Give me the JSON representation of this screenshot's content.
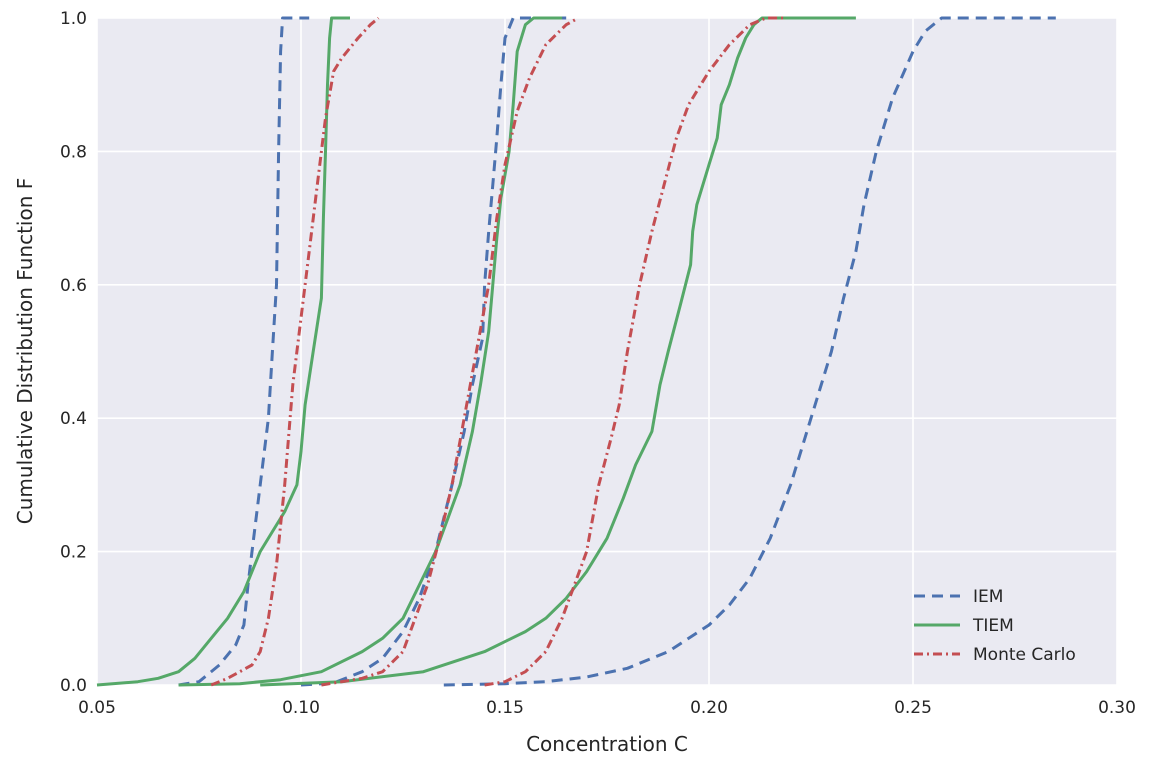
{
  "chart_data": {
    "type": "line",
    "xlabel": "Concentration C",
    "ylabel": "Cumulative Distribution Function F",
    "xlim": [
      0.05,
      0.3
    ],
    "ylim": [
      0.0,
      1.0
    ],
    "x_ticks": [
      "0.05",
      "0.10",
      "0.15",
      "0.20",
      "0.25",
      "0.30"
    ],
    "y_ticks": [
      "0.0",
      "0.2",
      "0.4",
      "0.6",
      "0.8",
      "1.0"
    ],
    "grid": true,
    "legend_position": "lower-right",
    "series": [
      {
        "name": "IEM",
        "style": "dashed",
        "color": "#4c72b0",
        "curves": [
          [
            [
              0.07,
              0.0
            ],
            [
              0.075,
              0.005
            ],
            [
              0.08,
              0.03
            ],
            [
              0.084,
              0.06
            ],
            [
              0.086,
              0.09
            ],
            [
              0.087,
              0.15
            ],
            [
              0.088,
              0.2
            ],
            [
              0.089,
              0.25
            ],
            [
              0.09,
              0.3
            ],
            [
              0.091,
              0.35
            ],
            [
              0.092,
              0.4
            ],
            [
              0.093,
              0.5
            ],
            [
              0.094,
              0.6
            ],
            [
              0.0945,
              0.8
            ],
            [
              0.095,
              0.95
            ],
            [
              0.0955,
              1.0
            ],
            [
              0.102,
              1.0
            ]
          ],
          [
            [
              0.1,
              0.0
            ],
            [
              0.108,
              0.003
            ],
            [
              0.115,
              0.02
            ],
            [
              0.12,
              0.04
            ],
            [
              0.125,
              0.08
            ],
            [
              0.129,
              0.13
            ],
            [
              0.133,
              0.2
            ],
            [
              0.137,
              0.3
            ],
            [
              0.14,
              0.38
            ],
            [
              0.142,
              0.45
            ],
            [
              0.1445,
              0.52
            ],
            [
              0.145,
              0.6
            ],
            [
              0.146,
              0.68
            ],
            [
              0.147,
              0.75
            ],
            [
              0.148,
              0.82
            ],
            [
              0.149,
              0.9
            ],
            [
              0.15,
              0.97
            ],
            [
              0.152,
              1.0
            ],
            [
              0.165,
              1.0
            ]
          ],
          [
            [
              0.135,
              0.0
            ],
            [
              0.15,
              0.002
            ],
            [
              0.16,
              0.005
            ],
            [
              0.17,
              0.012
            ],
            [
              0.18,
              0.025
            ],
            [
              0.19,
              0.05
            ],
            [
              0.2,
              0.09
            ],
            [
              0.205,
              0.12
            ],
            [
              0.21,
              0.16
            ],
            [
              0.215,
              0.22
            ],
            [
              0.22,
              0.3
            ],
            [
              0.225,
              0.4
            ],
            [
              0.23,
              0.5
            ],
            [
              0.233,
              0.58
            ],
            [
              0.236,
              0.65
            ],
            [
              0.238,
              0.72
            ],
            [
              0.241,
              0.8
            ],
            [
              0.245,
              0.88
            ],
            [
              0.25,
              0.95
            ],
            [
              0.253,
              0.98
            ],
            [
              0.257,
              1.0
            ],
            [
              0.285,
              1.0
            ]
          ]
        ]
      },
      {
        "name": "TIEM",
        "style": "solid",
        "color": "#55a868",
        "curves": [
          [
            [
              0.05,
              0.0
            ],
            [
              0.06,
              0.005
            ],
            [
              0.065,
              0.01
            ],
            [
              0.07,
              0.02
            ],
            [
              0.074,
              0.04
            ],
            [
              0.078,
              0.07
            ],
            [
              0.082,
              0.1
            ],
            [
              0.086,
              0.14
            ],
            [
              0.088,
              0.17
            ],
            [
              0.09,
              0.2
            ],
            [
              0.093,
              0.23
            ],
            [
              0.096,
              0.26
            ],
            [
              0.099,
              0.3
            ],
            [
              0.1,
              0.35
            ],
            [
              0.101,
              0.42
            ],
            [
              0.103,
              0.5
            ],
            [
              0.105,
              0.58
            ],
            [
              0.1055,
              0.7
            ],
            [
              0.106,
              0.8
            ],
            [
              0.1065,
              0.9
            ],
            [
              0.107,
              0.97
            ],
            [
              0.1075,
              1.0
            ],
            [
              0.112,
              1.0
            ]
          ],
          [
            [
              0.07,
              0.0
            ],
            [
              0.085,
              0.002
            ],
            [
              0.095,
              0.008
            ],
            [
              0.105,
              0.02
            ],
            [
              0.115,
              0.05
            ],
            [
              0.12,
              0.07
            ],
            [
              0.125,
              0.1
            ],
            [
              0.129,
              0.15
            ],
            [
              0.133,
              0.2
            ],
            [
              0.136,
              0.25
            ],
            [
              0.139,
              0.3
            ],
            [
              0.142,
              0.38
            ],
            [
              0.144,
              0.45
            ],
            [
              0.146,
              0.53
            ],
            [
              0.147,
              0.6
            ],
            [
              0.148,
              0.67
            ],
            [
              0.149,
              0.73
            ],
            [
              0.151,
              0.8
            ],
            [
              0.152,
              0.87
            ],
            [
              0.153,
              0.95
            ],
            [
              0.155,
              0.99
            ],
            [
              0.157,
              1.0
            ],
            [
              0.164,
              1.0
            ]
          ],
          [
            [
              0.09,
              0.0
            ],
            [
              0.11,
              0.005
            ],
            [
              0.13,
              0.02
            ],
            [
              0.145,
              0.05
            ],
            [
              0.155,
              0.08
            ],
            [
              0.16,
              0.1
            ],
            [
              0.165,
              0.13
            ],
            [
              0.17,
              0.17
            ],
            [
              0.175,
              0.22
            ],
            [
              0.179,
              0.28
            ],
            [
              0.182,
              0.33
            ],
            [
              0.186,
              0.38
            ],
            [
              0.188,
              0.45
            ],
            [
              0.19,
              0.5
            ],
            [
              0.193,
              0.57
            ],
            [
              0.1955,
              0.63
            ],
            [
              0.196,
              0.68
            ],
            [
              0.197,
              0.72
            ],
            [
              0.2,
              0.78
            ],
            [
              0.202,
              0.82
            ],
            [
              0.203,
              0.87
            ],
            [
              0.205,
              0.9
            ],
            [
              0.207,
              0.94
            ],
            [
              0.209,
              0.97
            ],
            [
              0.211,
              0.99
            ],
            [
              0.213,
              1.0
            ],
            [
              0.236,
              1.0
            ]
          ]
        ]
      },
      {
        "name": "Monte Carlo",
        "style": "dashdot",
        "color": "#c44e52",
        "curves": [
          [
            [
              0.078,
              0.0
            ],
            [
              0.082,
              0.01
            ],
            [
              0.085,
              0.02
            ],
            [
              0.088,
              0.03
            ],
            [
              0.09,
              0.05
            ],
            [
              0.092,
              0.1
            ],
            [
              0.094,
              0.18
            ],
            [
              0.096,
              0.3
            ],
            [
              0.098,
              0.45
            ],
            [
              0.1,
              0.55
            ],
            [
              0.102,
              0.65
            ],
            [
              0.104,
              0.75
            ],
            [
              0.106,
              0.85
            ],
            [
              0.108,
              0.92
            ],
            [
              0.11,
              0.94
            ],
            [
              0.114,
              0.97
            ],
            [
              0.117,
              0.99
            ],
            [
              0.119,
              1.0
            ]
          ],
          [
            [
              0.105,
              0.0
            ],
            [
              0.115,
              0.01
            ],
            [
              0.12,
              0.02
            ],
            [
              0.125,
              0.05
            ],
            [
              0.128,
              0.1
            ],
            [
              0.131,
              0.15
            ],
            [
              0.134,
              0.22
            ],
            [
              0.137,
              0.3
            ],
            [
              0.14,
              0.4
            ],
            [
              0.143,
              0.5
            ],
            [
              0.146,
              0.6
            ],
            [
              0.148,
              0.7
            ],
            [
              0.15,
              0.78
            ],
            [
              0.153,
              0.86
            ],
            [
              0.156,
              0.91
            ],
            [
              0.16,
              0.96
            ],
            [
              0.165,
              0.99
            ],
            [
              0.168,
              1.0
            ]
          ],
          [
            [
              0.145,
              0.0
            ],
            [
              0.15,
              0.005
            ],
            [
              0.155,
              0.02
            ],
            [
              0.16,
              0.05
            ],
            [
              0.164,
              0.1
            ],
            [
              0.167,
              0.15
            ],
            [
              0.17,
              0.2
            ],
            [
              0.173,
              0.3
            ],
            [
              0.176,
              0.37
            ],
            [
              0.178,
              0.42
            ],
            [
              0.18,
              0.5
            ],
            [
              0.183,
              0.6
            ],
            [
              0.186,
              0.68
            ],
            [
              0.189,
              0.75
            ],
            [
              0.192,
              0.82
            ],
            [
              0.195,
              0.87
            ],
            [
              0.198,
              0.9
            ],
            [
              0.2,
              0.92
            ],
            [
              0.205,
              0.96
            ],
            [
              0.21,
              0.99
            ],
            [
              0.214,
              1.0
            ],
            [
              0.219,
              1.0
            ]
          ]
        ]
      }
    ]
  }
}
